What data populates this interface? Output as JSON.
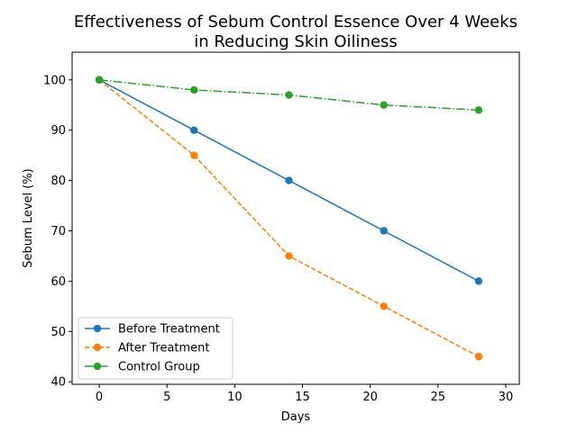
{
  "chart_data": {
    "type": "line",
    "title": [
      "Effectiveness of Sebum Control Essence Over 4 Weeks",
      "in Reducing Skin Oiliness"
    ],
    "xlabel": "Days",
    "ylabel": "Sebum Level (%)",
    "xlim": [
      -2,
      31
    ],
    "ylim": [
      39.5,
      105.5
    ],
    "xticks": [
      0,
      5,
      10,
      15,
      20,
      25,
      30
    ],
    "yticks": [
      40,
      50,
      60,
      70,
      80,
      90,
      100
    ],
    "grid": false,
    "legend": "lower-left",
    "x": [
      0,
      7,
      14,
      21,
      28
    ],
    "series": [
      {
        "name": "Before Treatment",
        "values": [
          100,
          90,
          80,
          70,
          60
        ],
        "color": "#1f77b4",
        "dash": "solid"
      },
      {
        "name": "After Treatment",
        "values": [
          100,
          85,
          65,
          55,
          45
        ],
        "color": "#ff7f0e",
        "dash": "dashed"
      },
      {
        "name": "Control Group",
        "values": [
          100,
          98,
          97,
          95,
          94
        ],
        "color": "#2ca02c",
        "dash": "dashdot"
      }
    ]
  }
}
